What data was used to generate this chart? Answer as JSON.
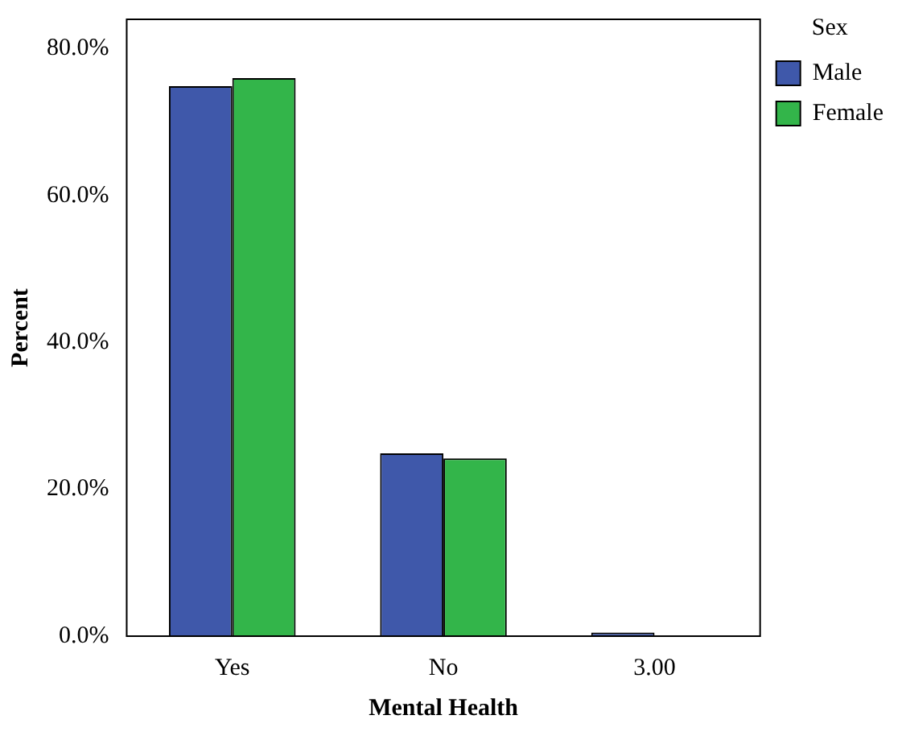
{
  "chart_data": {
    "type": "bar",
    "xlabel": "Mental Health",
    "ylabel": "Percent",
    "legend_title": "Sex",
    "categories": [
      "Yes",
      "No",
      "3.00"
    ],
    "series": [
      {
        "name": "Male",
        "color": "#3f58aa",
        "values": [
          74.9,
          24.9,
          0.5
        ]
      },
      {
        "name": "Female",
        "color": "#33b54a",
        "values": [
          76.0,
          24.2,
          0
        ]
      }
    ],
    "ylim": [
      0,
      84
    ],
    "yticks": [
      {
        "value": 0,
        "label": "0.0%"
      },
      {
        "value": 20,
        "label": "20.0%"
      },
      {
        "value": 40,
        "label": "40.0%"
      },
      {
        "value": 60,
        "label": "60.0%"
      },
      {
        "value": 80,
        "label": "80.0%"
      }
    ],
    "grid": false,
    "legend": "top right"
  }
}
